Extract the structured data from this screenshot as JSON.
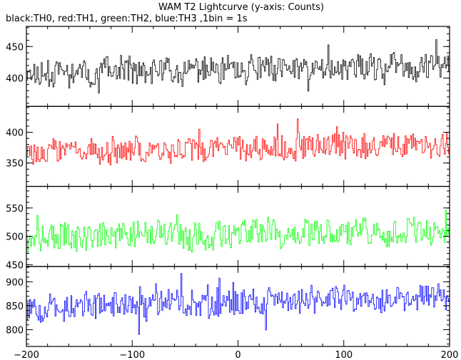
{
  "chart_data": {
    "type": "line",
    "title": "WAM T2 Lightcurve (y-axis: Counts)",
    "subtitle": "black:TH0, red:TH1, green:TH2, blue:TH3 ,1bin = 1s",
    "xlim": [
      -200,
      200
    ],
    "x_ticks": [
      -200,
      -100,
      0,
      100,
      200
    ],
    "x_tick_labels": [
      "−200",
      "−100",
      "0",
      "100",
      "200"
    ],
    "grid": false,
    "series": [
      {
        "name": "TH0",
        "color": "#000000",
        "ylim": [
          355,
          482
        ],
        "y_ticks": [
          400,
          450
        ],
        "y_tick_labels": [
          "400",
          "450"
        ],
        "mean_start": 408,
        "mean_end": 420,
        "noise": 21,
        "seed": 11
      },
      {
        "name": "TH1",
        "color": "#ff0000",
        "ylim": [
          312,
          442
        ],
        "y_ticks": [
          350,
          400
        ],
        "y_tick_labels": [
          "350",
          "400"
        ],
        "mean_start": 370,
        "mean_end": 380,
        "noise": 20,
        "seed": 23
      },
      {
        "name": "TH2",
        "color": "#00ff00",
        "ylim": [
          447,
          588
        ],
        "y_ticks": [
          450,
          500,
          550
        ],
        "y_tick_labels": [
          "450",
          "500",
          "550"
        ],
        "mean_start": 498,
        "mean_end": 510,
        "noise": 24,
        "seed": 37
      },
      {
        "name": "TH3",
        "color": "#0000ff",
        "ylim": [
          765,
          932
        ],
        "y_ticks": [
          800,
          850,
          900
        ],
        "y_tick_labels": [
          "800",
          "850",
          "900"
        ],
        "mean_start": 845,
        "mean_end": 868,
        "noise": 28,
        "seed": 53
      }
    ]
  }
}
